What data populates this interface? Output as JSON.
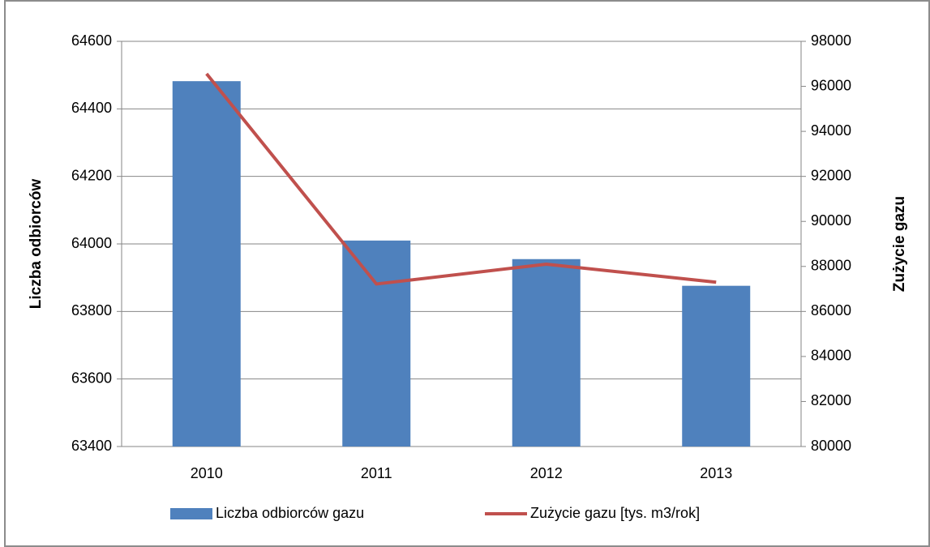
{
  "chart_data": {
    "type": "bar_line",
    "categories": [
      "2010",
      "2011",
      "2012",
      "2013"
    ],
    "series": [
      {
        "name": "Liczba odbiorców gazu",
        "type": "bar",
        "color": "#4f81bd",
        "values": [
          64482,
          64010,
          63955,
          63876
        ]
      },
      {
        "name": "Zużycie gazu [tys. m3/rok]",
        "type": "line",
        "axis": "y2",
        "color": "#c0504d",
        "values": [
          96560,
          87220,
          88100,
          87300
        ]
      }
    ],
    "ylabel": "Liczba odbiorców",
    "y2label": "Zużycie gazu",
    "ylim": [
      63400,
      64600
    ],
    "yticks": [
      63400,
      63600,
      63800,
      64000,
      64200,
      64400,
      64600
    ],
    "y2lim": [
      80000,
      98000
    ],
    "y2ticks": [
      80000,
      82000,
      84000,
      86000,
      88000,
      90000,
      92000,
      94000,
      96000,
      98000
    ],
    "grid": true,
    "legend": "bottom"
  }
}
